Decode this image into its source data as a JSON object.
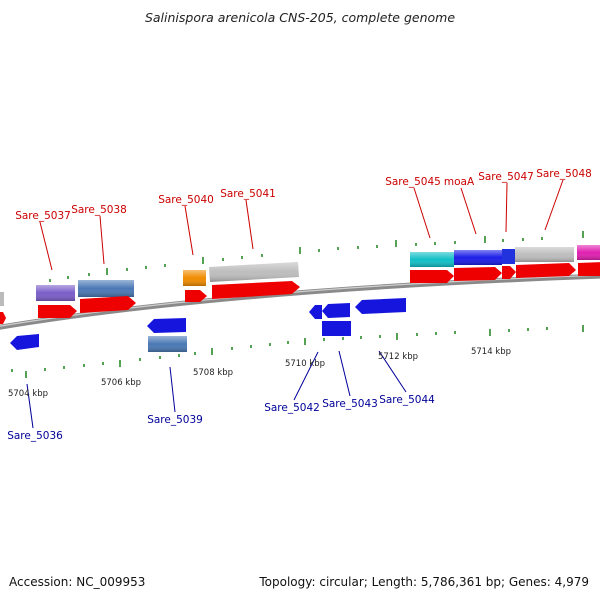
{
  "title": "Salinispora arenicola CNS-205, complete genome",
  "footer": {
    "accession": "Accession: NC_009953",
    "topology": "Topology: circular; Length: 5,786,361 bp; Genes: 4,979"
  },
  "colors": {
    "forward_label": "#cc0000",
    "reverse_label": "#000099",
    "cds": "#ee0000",
    "backbone": "#8a8a8a",
    "tick": "#2a8a2a"
  },
  "scale_labels": [
    "5704 kbp",
    "5706 kbp",
    "5708 kbp",
    "5710 kbp",
    "5712 kbp",
    "5714 kbp"
  ],
  "forward_genes": [
    "Sare_5037",
    "Sare_5038",
    "Sare_5040",
    "Sare_5041",
    "Sare_5045",
    "moaA",
    "Sare_5047",
    "Sare_5048"
  ],
  "reverse_genes": [
    "Sare_5036",
    "Sare_5039",
    "Sare_5042",
    "Sare_5043",
    "Sare_5044"
  ]
}
